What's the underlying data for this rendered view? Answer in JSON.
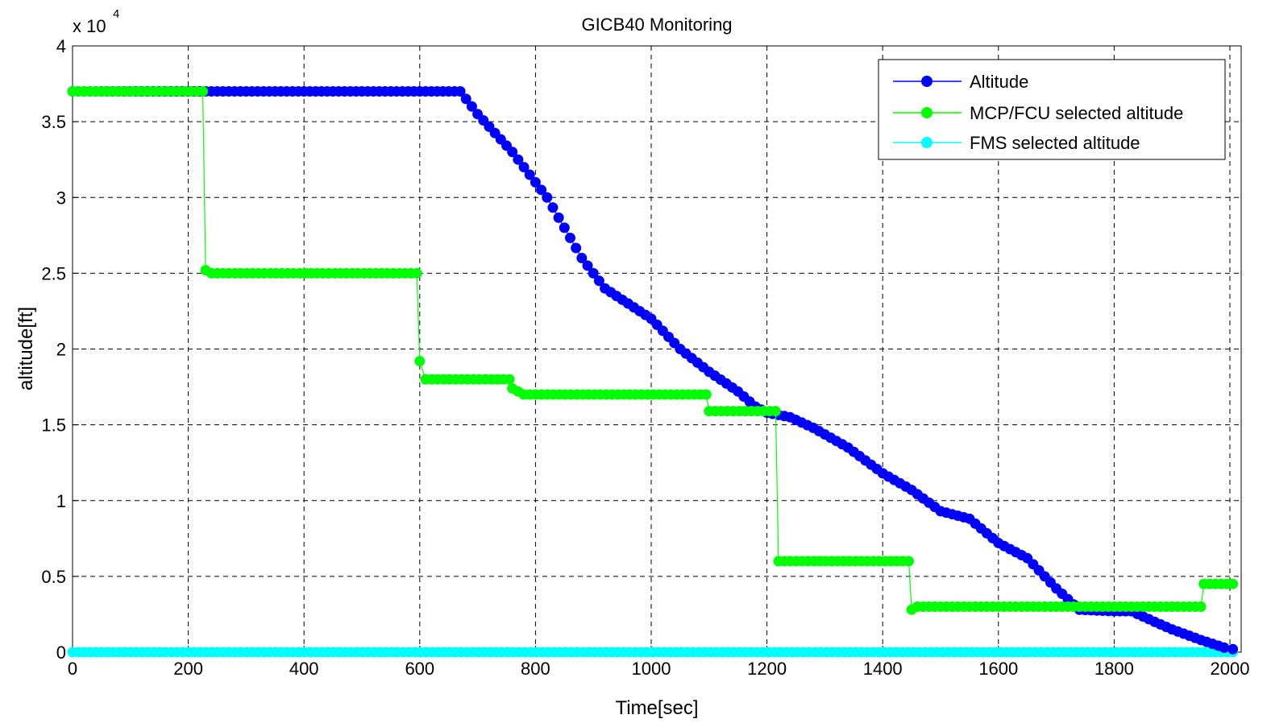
{
  "chart_data": {
    "type": "line",
    "title": "GICB40 Monitoring",
    "xlabel": "Time[sec]",
    "ylabel": "altitude[ft]",
    "y_multiplier_label": "x 10",
    "y_multiplier_exponent": "4",
    "xlim": [
      0,
      2000
    ],
    "ylim": [
      0,
      4
    ],
    "xticks": [
      0,
      200,
      400,
      600,
      800,
      1000,
      1200,
      1400,
      1600,
      1800,
      2000
    ],
    "yticks": [
      0,
      0.5,
      1,
      1.5,
      2,
      2.5,
      3,
      3.5,
      4
    ],
    "ytick_labels": [
      "0",
      "0.5",
      "1",
      "1.5",
      "2",
      "2.5",
      "3",
      "3.5",
      "4"
    ],
    "xtick_labels": [
      "0",
      "200",
      "400",
      "600",
      "800",
      "1000",
      "1200",
      "1400",
      "1600",
      "1800",
      "2000"
    ],
    "grid": true,
    "legend_position": "top-right",
    "series": [
      {
        "name": "Altitude",
        "color": "#0000ff",
        "points": [
          [
            0,
            3.7
          ],
          [
            670,
            3.7
          ],
          [
            700,
            3.55
          ],
          [
            760,
            3.3
          ],
          [
            820,
            3.0
          ],
          [
            880,
            2.6
          ],
          [
            920,
            2.4
          ],
          [
            960,
            2.3
          ],
          [
            1000,
            2.2
          ],
          [
            1050,
            2.0
          ],
          [
            1100,
            1.85
          ],
          [
            1150,
            1.72
          ],
          [
            1180,
            1.62
          ],
          [
            1200,
            1.58
          ],
          [
            1240,
            1.55
          ],
          [
            1280,
            1.48
          ],
          [
            1340,
            1.35
          ],
          [
            1400,
            1.18
          ],
          [
            1450,
            1.07
          ],
          [
            1500,
            0.93
          ],
          [
            1550,
            0.88
          ],
          [
            1600,
            0.72
          ],
          [
            1650,
            0.62
          ],
          [
            1700,
            0.42
          ],
          [
            1740,
            0.28
          ],
          [
            1800,
            0.27
          ],
          [
            1830,
            0.27
          ],
          [
            1870,
            0.2
          ],
          [
            1900,
            0.15
          ],
          [
            1950,
            0.08
          ],
          [
            1990,
            0.03
          ],
          [
            2005,
            0.02
          ]
        ]
      },
      {
        "name": "MCP/FCU selected altitude",
        "color": "#00ff00",
        "points": [
          [
            0,
            3.7
          ],
          [
            225,
            3.7
          ],
          [
            230,
            2.52
          ],
          [
            240,
            2.5
          ],
          [
            595,
            2.5
          ],
          [
            600,
            1.92
          ],
          [
            610,
            1.8
          ],
          [
            755,
            1.8
          ],
          [
            760,
            1.74
          ],
          [
            780,
            1.7
          ],
          [
            1095,
            1.7
          ],
          [
            1100,
            1.59
          ],
          [
            1215,
            1.59
          ],
          [
            1220,
            0.6
          ],
          [
            1445,
            0.6
          ],
          [
            1450,
            0.28
          ],
          [
            1460,
            0.3
          ],
          [
            1950,
            0.3
          ],
          [
            1955,
            0.45
          ],
          [
            2005,
            0.45
          ]
        ]
      },
      {
        "name": "FMS selected altitude",
        "color": "#00ffff",
        "points": [
          [
            0,
            0.0
          ],
          [
            2005,
            0.0
          ]
        ]
      }
    ]
  }
}
